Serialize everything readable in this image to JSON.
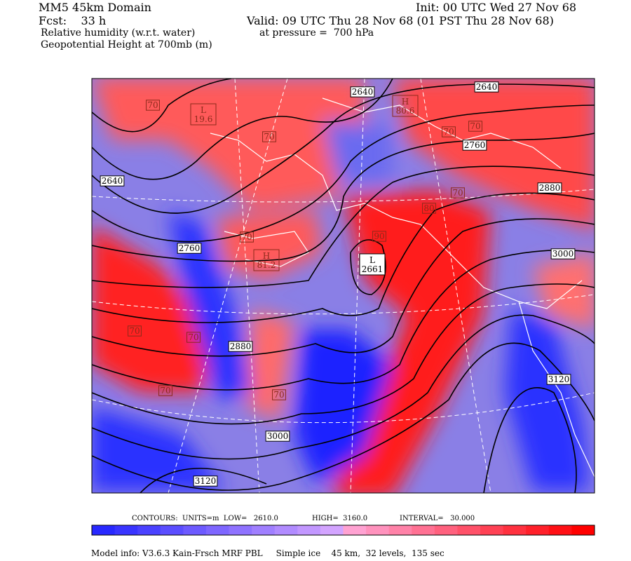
{
  "header": {
    "model": "MM5 45km Domain",
    "init": "Init: 00 UTC Wed 27 Nov 68",
    "fcst": "Fcst:    33 h",
    "valid": "Valid: 09 UTC Thu 28 Nov 68 (01 PST Thu 28 Nov 68)",
    "field1": "Relative humidity (w.r.t. water)",
    "pressure": "at pressure =  700 hPa",
    "field2": "Geopotential Height at 700mb (m)"
  },
  "height_labels": [
    "2640",
    "2640",
    "2640",
    "2760",
    "2880",
    "2760",
    "3000",
    "2880",
    "3000",
    "3120",
    "3120"
  ],
  "rh_labels": [
    "70",
    "70",
    "70",
    "70",
    "70",
    "70",
    "70",
    "70",
    "70",
    "70",
    "80",
    "90"
  ],
  "extrema": [
    {
      "type": "L",
      "value": "19.6"
    },
    {
      "type": "H",
      "value": "80.6"
    },
    {
      "type": "H",
      "value": "81.2"
    },
    {
      "type": "L",
      "value": "2661"
    }
  ],
  "footer": {
    "contours": "CONTOURS:  UNITS=m  LOW=   2610.0",
    "high": "HIGH=  3160.0",
    "interval": "INTERVAL=   30.000",
    "model_info": "Model info: V3.6.3 Kain-Frsch MRF PBL     Simple ice    45 km,  32 levels,  135 sec"
  }
}
